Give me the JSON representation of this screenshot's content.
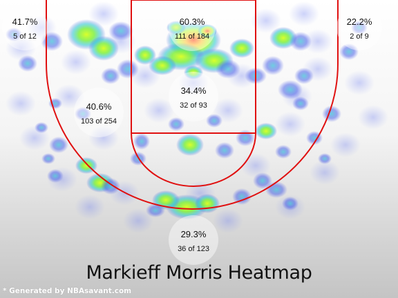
{
  "chart_data": {
    "type": "heatmap",
    "title": "Markieff Morris Heatmap",
    "zones": [
      {
        "id": "left-corner-three",
        "pct": "41.7%",
        "made": 5,
        "attempts": 12,
        "label": "5 of 12"
      },
      {
        "id": "restricted-area",
        "pct": "60.3%",
        "made": 111,
        "attempts": 184,
        "label": "111 of 184"
      },
      {
        "id": "right-corner-three",
        "pct": "22.2%",
        "made": 2,
        "attempts": 9,
        "label": "2 of 9"
      },
      {
        "id": "paint-non-ra",
        "pct": "34.4%",
        "made": 32,
        "attempts": 93,
        "label": "32 of 93"
      },
      {
        "id": "mid-range",
        "pct": "40.6%",
        "made": 103,
        "attempts": 254,
        "label": "103 of 254"
      },
      {
        "id": "above-break-three",
        "pct": "29.3%",
        "made": 36,
        "attempts": 123,
        "label": "36 of 123"
      }
    ],
    "colors": {
      "court_lines": "#e01010",
      "heat_low": "#3a48e0",
      "heat_mid": "#aaff20",
      "heat_high": "#ff3010"
    }
  },
  "footer": {
    "credit": "* Generated by NBAsavant.com"
  }
}
